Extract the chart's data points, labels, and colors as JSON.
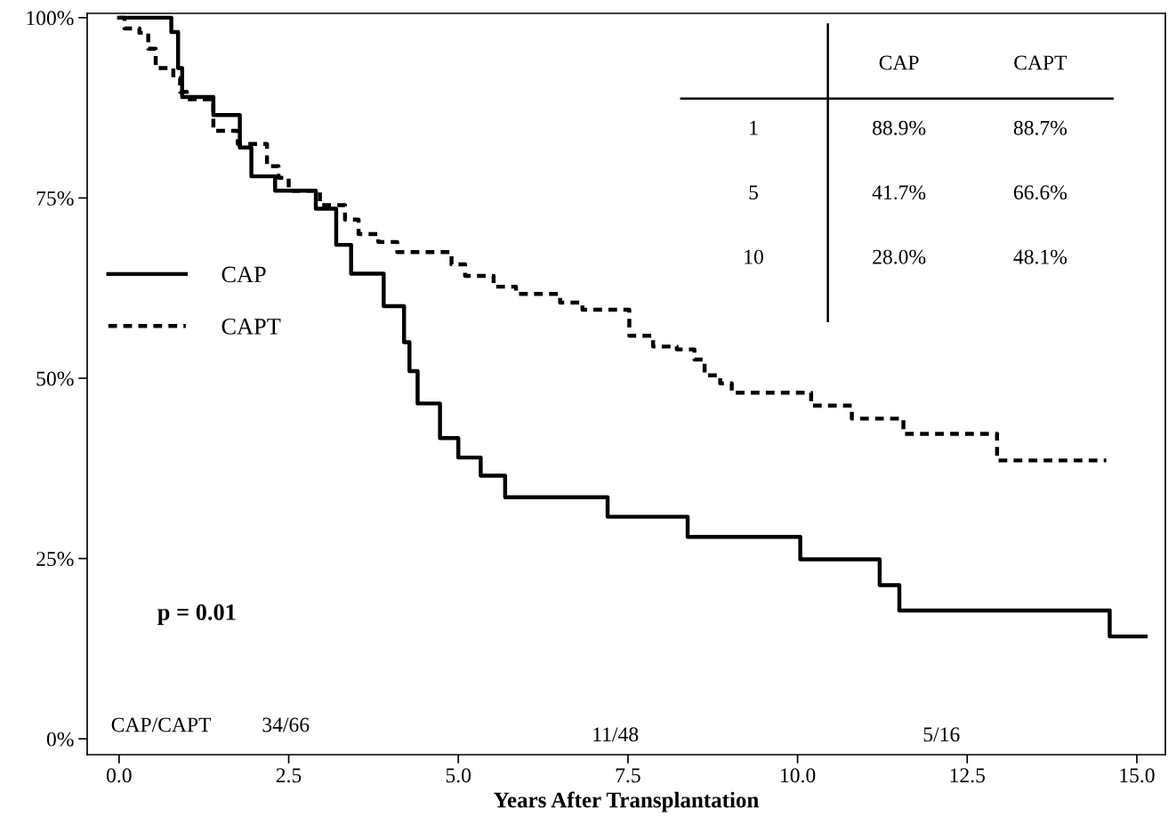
{
  "chart_data": {
    "type": "step",
    "xlabel": "Years After Transplantation",
    "xlim": [
      -0.47,
      15.42
    ],
    "ylim": [
      -2.2,
      100.6
    ],
    "xticks": [
      {
        "value": 0,
        "label": "0.0"
      },
      {
        "value": 2.5,
        "label": "2.5"
      },
      {
        "value": 5,
        "label": "5.0"
      },
      {
        "value": 7.5,
        "label": "7.5"
      },
      {
        "value": 10,
        "label": "10.0"
      },
      {
        "value": 12.5,
        "label": "12.5"
      },
      {
        "value": 15,
        "label": "15.0"
      }
    ],
    "yticks": [
      {
        "value": 0,
        "label": "0%"
      },
      {
        "value": 25,
        "label": "25%"
      },
      {
        "value": 50,
        "label": "50%"
      },
      {
        "value": 75,
        "label": "75%"
      },
      {
        "value": 100,
        "label": "100%"
      }
    ],
    "grid": false,
    "legend": "left",
    "marker": "none",
    "series": [
      {
        "name": "CAP",
        "color": "#000000",
        "line_style": "solid",
        "x": [
          0,
          0.77,
          0.87,
          0.93,
          1.39,
          1.78,
          1.95,
          2.3,
          2.9,
          3.2,
          3.42,
          3.9,
          4.2,
          4.28,
          4.4,
          4.73,
          5.0,
          5.33,
          5.69,
          7.2,
          8.38,
          10.04,
          11.21,
          11.5,
          14.6,
          15.13
        ],
        "values": [
          100,
          98,
          93,
          89,
          86.5,
          82,
          78,
          76,
          73.5,
          68.5,
          64.5,
          60,
          55,
          51,
          46.5,
          41.7,
          39,
          36.5,
          33.5,
          30.8,
          28,
          24.9,
          21.3,
          17.8,
          14.2,
          14.2
        ]
      },
      {
        "name": "CAPT",
        "color": "#000000",
        "line_style": "dashed",
        "x": [
          0,
          0.08,
          0.3,
          0.43,
          0.54,
          0.8,
          0.9,
          1.0,
          1.39,
          1.75,
          2.18,
          2.35,
          2.5,
          2.96,
          3.33,
          3.53,
          3.82,
          4.1,
          4.9,
          5.1,
          5.52,
          5.85,
          6.5,
          6.83,
          7.52,
          7.87,
          8.22,
          8.48,
          8.63,
          8.86,
          9.03,
          10.2,
          10.8,
          11.56,
          12.94,
          14.55
        ],
        "values": [
          100,
          98.5,
          97.9,
          95.7,
          93,
          91.6,
          89.7,
          88.7,
          84.3,
          82.5,
          79.4,
          77.8,
          76,
          74,
          72,
          70,
          68.9,
          67.5,
          65.8,
          64.2,
          62.7,
          61.7,
          60.5,
          59.5,
          55.9,
          54.4,
          54,
          52.6,
          50.4,
          49.3,
          48.0,
          46.2,
          44.4,
          42.3,
          38.6,
          38.6
        ]
      }
    ],
    "annotations": [
      "p = 0.01",
      "CAP/CAPT",
      "34/66",
      "11/48",
      "5/16",
      "CAP",
      "CAPT",
      "1",
      "88.9%",
      "88.7%",
      "5",
      "41.7%",
      "66.6%",
      "10",
      "28.0%",
      "48.1%"
    ]
  }
}
